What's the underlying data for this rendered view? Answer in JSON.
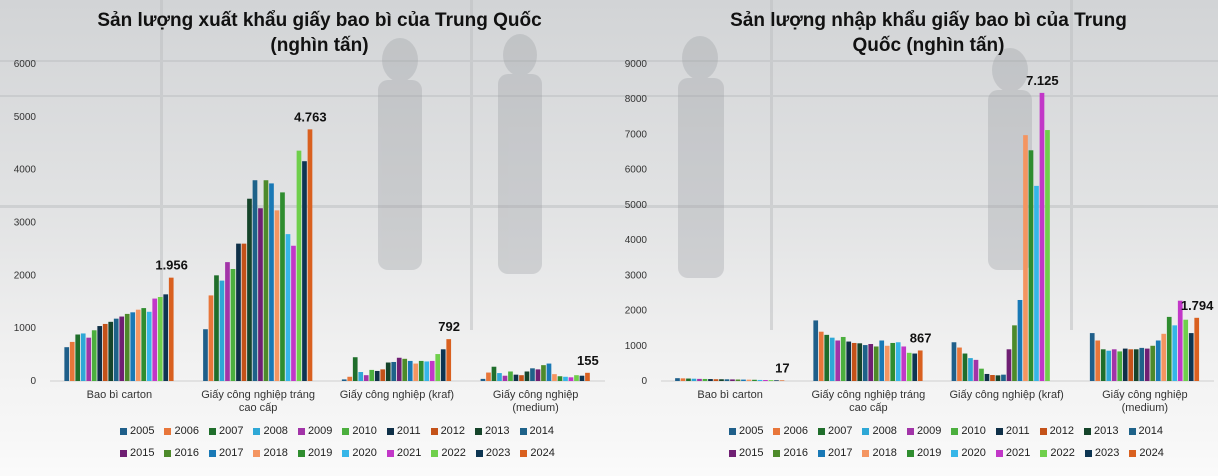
{
  "colors": {
    "2005": "#1f5f8a",
    "2006": "#e8763a",
    "2007": "#1f6e2b",
    "2008": "#2ea8d6",
    "2009": "#a234a8",
    "2010": "#4caf3e",
    "2011": "#0f3048",
    "2012": "#c45219",
    "2013": "#15442a",
    "2014": "#1e6289",
    "2015": "#6f1f73",
    "2016": "#4d8a2a",
    "2017": "#1979b6",
    "2018": "#f49561",
    "2019": "#2f8d2f",
    "2020": "#36b6e8",
    "2021": "#c237c8",
    "2022": "#6fcf4b",
    "2023": "#0d3552",
    "2024": "#d9601f"
  },
  "years": [
    "2005",
    "2006",
    "2007",
    "2008",
    "2009",
    "2010",
    "2011",
    "2012",
    "2013",
    "2014",
    "2015",
    "2016",
    "2017",
    "2018",
    "2019",
    "2020",
    "2021",
    "2022",
    "2023",
    "2024"
  ],
  "chart_data": [
    {
      "type": "bar",
      "title": "Sản lượng xuất khẩu giấy bao bì của Trung Quốc\n(nghìn tấn)",
      "categories": [
        "Bao bì carton",
        "Giấy công nghiệp tráng cao cấp",
        "Giấy công nghiệp (kraf)",
        "Giấy công nghiệp (medium)"
      ],
      "category_labels": [
        [
          "Bao bì carton"
        ],
        [
          "Giấy công nghiệp tráng",
          "cao cấp"
        ],
        [
          "Giấy công nghiệp (kraf)"
        ],
        [
          "Giấy công nghiệp",
          "(medium)"
        ]
      ],
      "ylim": [
        0,
        6000
      ],
      "yticks": [
        0,
        1000,
        2000,
        3000,
        4000,
        5000,
        6000
      ],
      "ytick_labels": [
        "0",
        "1000",
        "2000",
        "3000",
        "4000",
        "5000",
        "6000"
      ],
      "series_years": [
        "2005",
        "2006",
        "2007",
        "2008",
        "2009",
        "2010",
        "2011",
        "2012",
        "2013",
        "2014",
        "2015",
        "2016",
        "2017",
        "2018",
        "2019",
        "2020",
        "2021",
        "2022",
        "2023",
        "2024"
      ],
      "values": [
        [
          640,
          740,
          880,
          900,
          820,
          960,
          1040,
          1080,
          1120,
          1180,
          1220,
          1270,
          1300,
          1350,
          1380,
          1310,
          1560,
          1590,
          1640,
          1956
        ],
        [
          980,
          1620,
          2000,
          1900,
          2250,
          2120,
          2600,
          2600,
          3450,
          3800,
          3270,
          3800,
          3740,
          3230,
          3570,
          2780,
          2560,
          4360,
          4160,
          4763
        ],
        [
          30,
          80,
          450,
          170,
          110,
          210,
          190,
          220,
          350,
          360,
          440,
          420,
          380,
          330,
          380,
          370,
          380,
          510,
          600,
          792
        ],
        [
          40,
          160,
          270,
          150,
          100,
          180,
          120,
          110,
          180,
          240,
          220,
          300,
          330,
          130,
          90,
          80,
          70,
          110,
          100,
          155
        ]
      ],
      "data_labels": [
        "1.956",
        "4.763",
        "792",
        "155"
      ]
    },
    {
      "type": "bar",
      "title": "Sản lượng nhập khẩu giấy bao bì của Trung\nQuốc (nghìn tấn)",
      "categories": [
        "Bao bì carton",
        "Giấy công nghiệp tráng cao cấp",
        "Giấy công nghiệp (kraf)",
        "Giấy công nghiệp (medium)"
      ],
      "category_labels": [
        [
          "Bao bì carton"
        ],
        [
          "Giấy công nghiệp tráng",
          "cao cấp"
        ],
        [
          "Giấy công nghiệp (kraf)"
        ],
        [
          "Giấy công nghiệp",
          "(medium)"
        ]
      ],
      "ylim": [
        0,
        9000
      ],
      "yticks": [
        0,
        1000,
        2000,
        3000,
        4000,
        5000,
        6000,
        7000,
        8000,
        9000
      ],
      "ytick_labels": [
        "0",
        "1000",
        "2000",
        "3000",
        "4000",
        "5000",
        "6000",
        "7000",
        "8000",
        "9000"
      ],
      "series_years": [
        "2005",
        "2006",
        "2007",
        "2008",
        "2009",
        "2010",
        "2011",
        "2012",
        "2013",
        "2014",
        "2015",
        "2016",
        "2017",
        "2018",
        "2019",
        "2020",
        "2021",
        "2022",
        "2023",
        "2024"
      ],
      "values": [
        [
          80,
          75,
          70,
          65,
          60,
          58,
          55,
          50,
          50,
          48,
          45,
          42,
          40,
          38,
          35,
          30,
          28,
          25,
          20,
          17
        ],
        [
          1720,
          1400,
          1310,
          1230,
          1150,
          1250,
          1120,
          1080,
          1070,
          1020,
          1050,
          980,
          1150,
          1000,
          1080,
          1100,
          980,
          800,
          780,
          867
        ],
        [
          1100,
          950,
          780,
          650,
          600,
          350,
          200,
          170,
          160,
          180,
          900,
          1580,
          2300,
          6980,
          6550,
          5540,
          8180,
          7125,
          0,
          0
        ],
        [
          1360,
          1150,
          900,
          860,
          900,
          840,
          920,
          900,
          900,
          940,
          920,
          1000,
          1150,
          1340,
          1820,
          1580,
          2280,
          1740,
          1360,
          1794
        ]
      ],
      "data_labels": [
        "17",
        "867",
        "7.125",
        "1.794"
      ]
    }
  ]
}
